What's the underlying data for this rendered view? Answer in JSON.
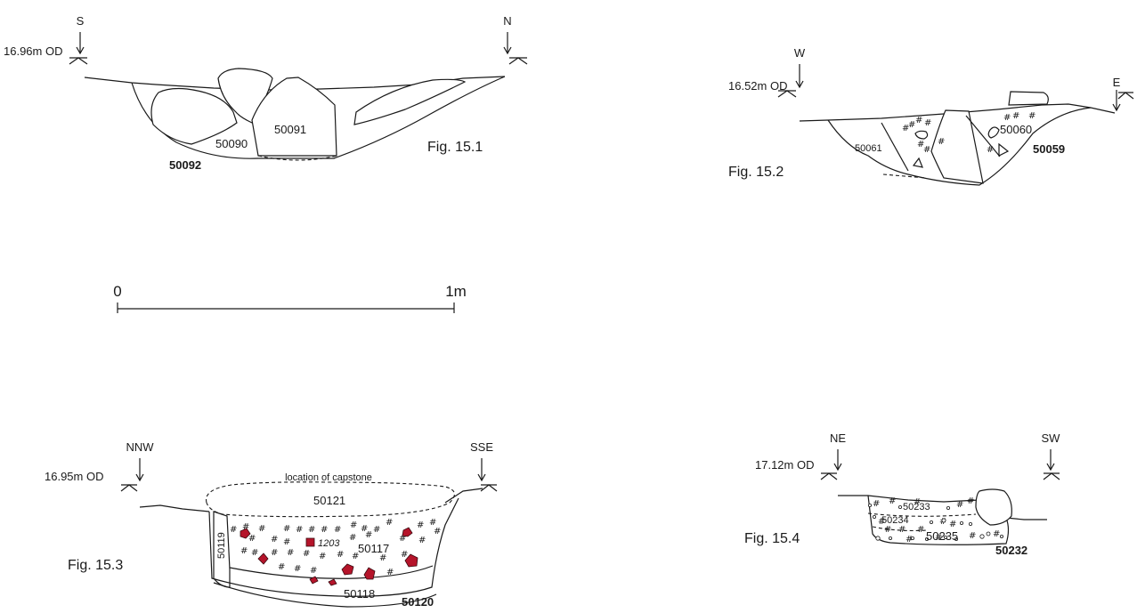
{
  "fig1": {
    "left_dir": "S",
    "right_dir": "N",
    "datum": "16.96m OD",
    "contexts": [
      "50090",
      "50091"
    ],
    "cut": "50092",
    "caption": "Fig. 15.1"
  },
  "fig2": {
    "left_dir": "W",
    "right_dir": "E",
    "datum": "16.52m OD",
    "contexts": [
      "50061",
      "50060"
    ],
    "cut": "50059",
    "caption": "Fig. 15.2"
  },
  "scale_bar": {
    "start_label": "0",
    "end_label": "1m"
  },
  "fig3": {
    "left_dir": "NNW",
    "right_dir": "SSE",
    "datum": "16.95m OD",
    "capstone_note": "location of capstone",
    "contexts": [
      "50121",
      "50119",
      "50117",
      "50118"
    ],
    "small_find": "1203",
    "cut": "50120",
    "caption": "Fig. 15.3",
    "stone_color": "#b5142a"
  },
  "fig4": {
    "left_dir": "NE",
    "right_dir": "SW",
    "datum": "17.12m OD",
    "contexts": [
      "50233",
      "50234",
      "50235"
    ],
    "cut": "50232",
    "caption": "Fig. 15.4"
  }
}
